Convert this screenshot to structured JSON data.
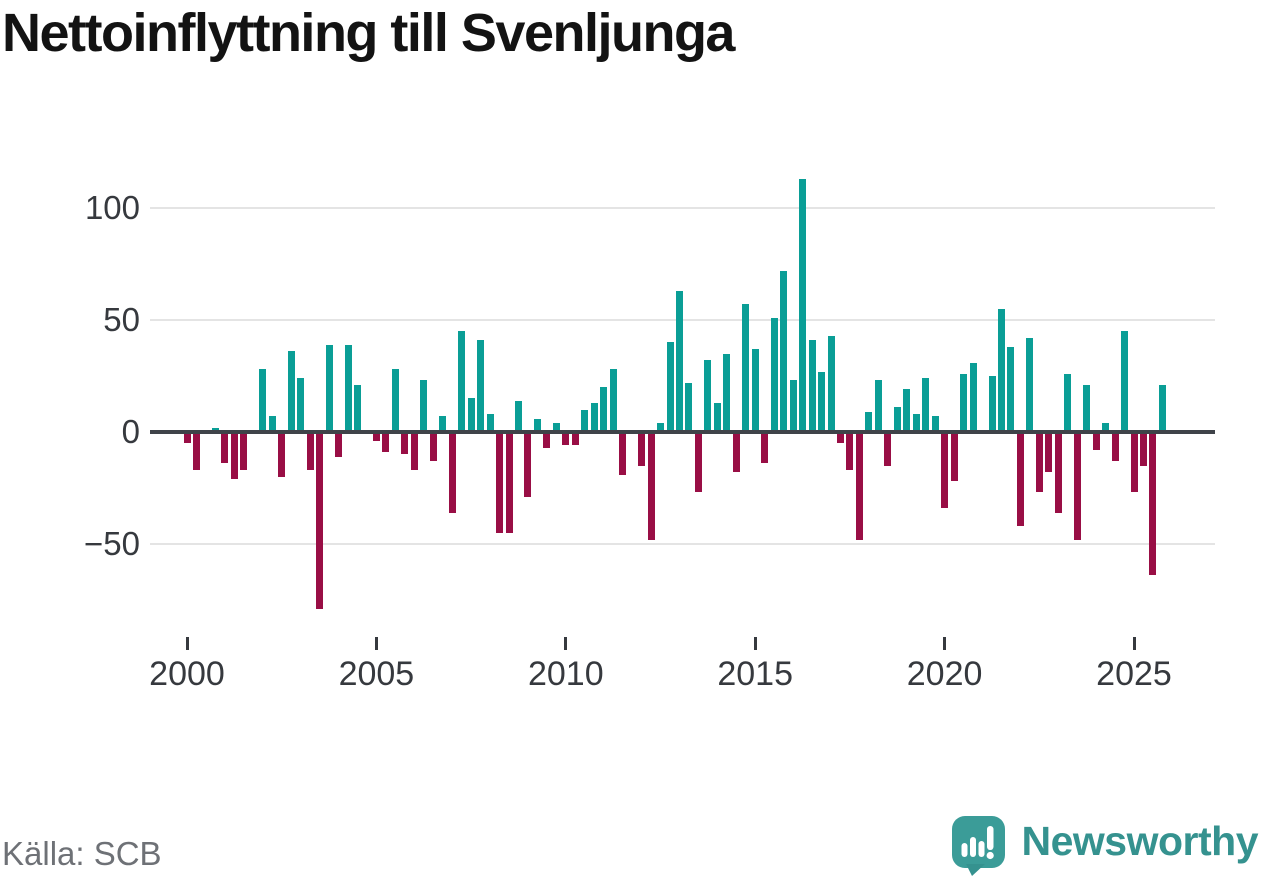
{
  "title": "Nettoinflyttning till Svenljunga",
  "source": "Källa: SCB",
  "brand": {
    "name": "Newsworthy",
    "color": "#35928f",
    "icon": "speech-bubble-bar-chart-exclamation"
  },
  "colors": {
    "positive": "#0a9e96",
    "negative": "#990e45",
    "zero_line": "#3f4349",
    "grid": "#e4e4e4",
    "axis_text": "#36393e",
    "title_text": "#131313",
    "source_text": "#6e7176"
  },
  "chart_data": {
    "type": "bar",
    "title": "Nettoinflyttning till Svenljunga",
    "xlabel": "",
    "ylabel": "",
    "unit": "net migration per quarter (persons)",
    "periodicity": "quarterly",
    "start_period": "2000-K1",
    "end_period": "2025-K4",
    "x_tick_labels": [
      "2000",
      "2005",
      "2010",
      "2015",
      "2020",
      "2025"
    ],
    "y_ticks": [
      100,
      50,
      0,
      -50
    ],
    "ylim": [
      -90,
      117
    ],
    "grid": true,
    "legend": false,
    "series": [
      {
        "name": "Nettoinflyttning",
        "values": [
          -5,
          -17,
          0,
          2,
          -14,
          -21,
          -17,
          0,
          28,
          7,
          -20,
          36,
          24,
          -17,
          -79,
          39,
          -11,
          39,
          21,
          0,
          -4,
          -9,
          28,
          -10,
          -17,
          23,
          -13,
          7,
          -36,
          45,
          15,
          41,
          8,
          -45,
          -45,
          14,
          -29,
          6,
          -7,
          4,
          -6,
          -6,
          10,
          13,
          20,
          28,
          -19,
          0,
          -15,
          -48,
          4,
          40,
          63,
          22,
          -27,
          32,
          13,
          35,
          -18,
          57,
          37,
          -14,
          51,
          72,
          23,
          113,
          41,
          27,
          43,
          -5,
          -17,
          -48,
          9,
          23,
          -15,
          11,
          19,
          8,
          24,
          7,
          -34,
          -22,
          26,
          31,
          0,
          25,
          55,
          38,
          -42,
          42,
          -27,
          -18,
          -36,
          26,
          -48,
          21,
          -8,
          4,
          -13,
          45,
          -27,
          -15,
          -64,
          21
        ]
      }
    ]
  }
}
